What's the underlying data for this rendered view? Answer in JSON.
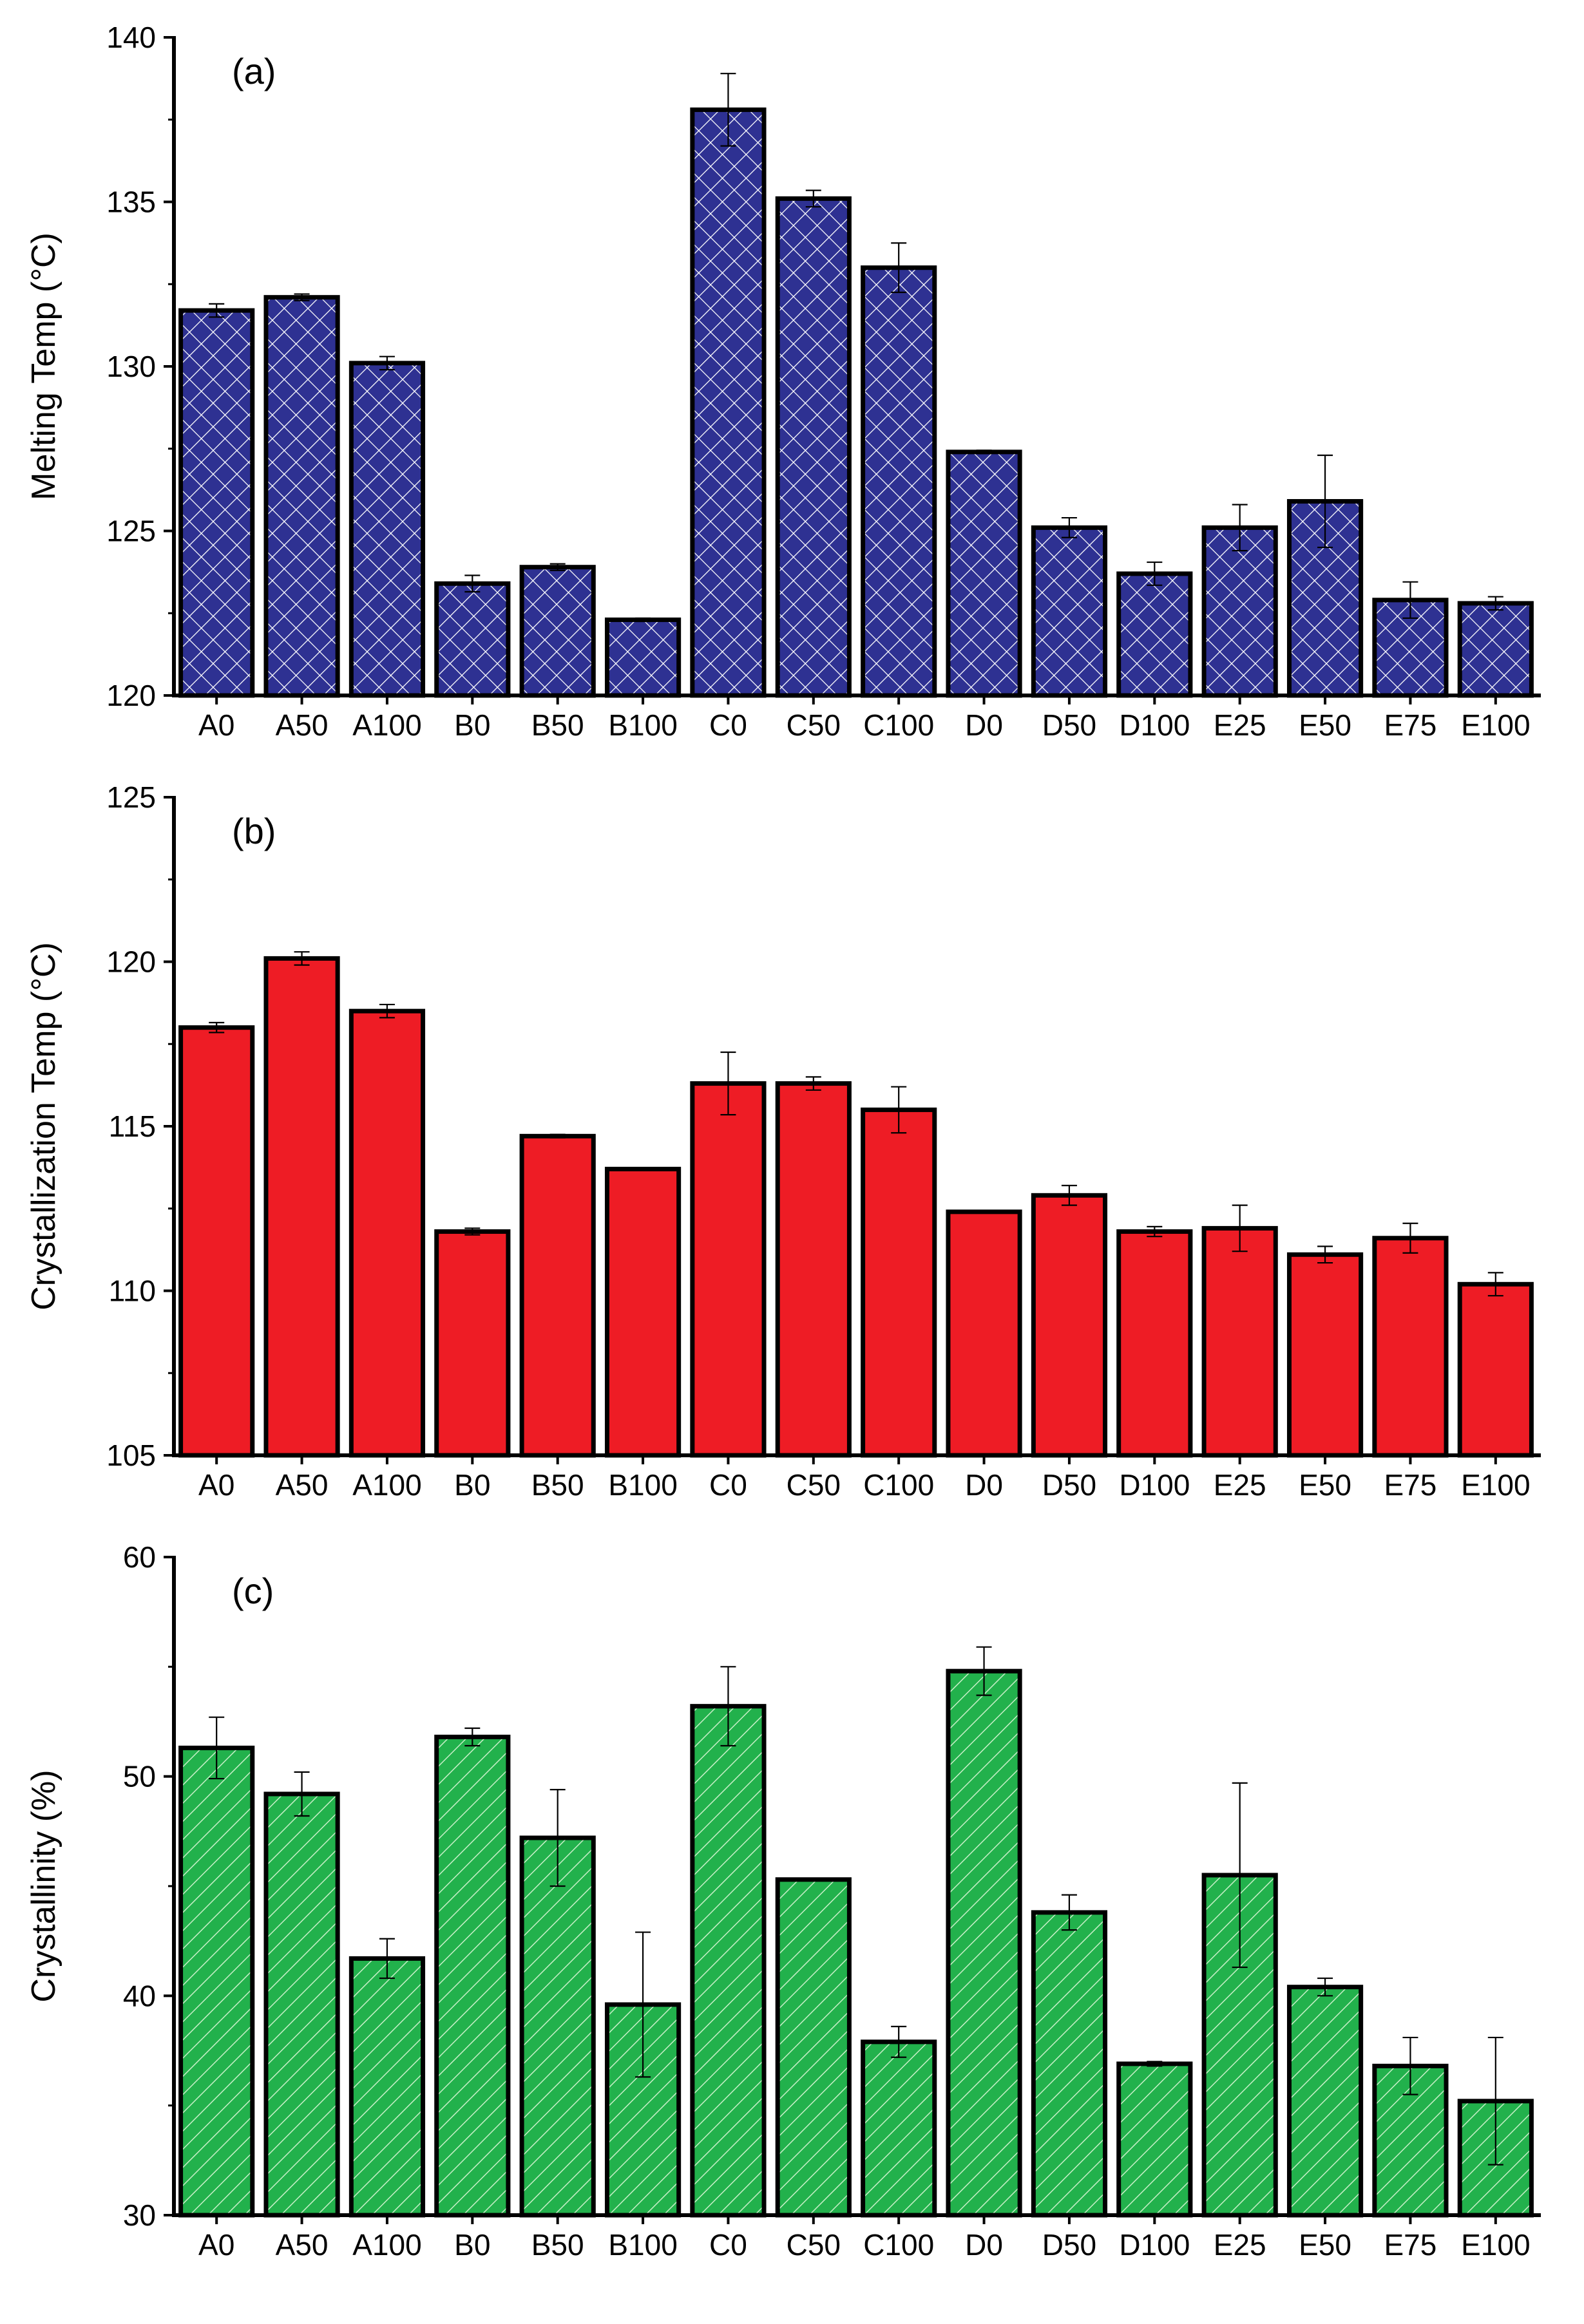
{
  "chart_data": [
    {
      "type": "bar",
      "title": "",
      "panel_label": "(a)",
      "xlabel": "",
      "ylabel": "Melting Temp (°C)",
      "ylim": [
        120,
        140
      ],
      "yticks": [
        120,
        125,
        130,
        135,
        140
      ],
      "categories": [
        "A0",
        "A50",
        "A100",
        "B0",
        "B50",
        "B100",
        "C0",
        "C50",
        "C100",
        "D0",
        "D50",
        "D100",
        "E25",
        "E50",
        "E75",
        "E100"
      ],
      "values": [
        131.7,
        132.1,
        130.1,
        123.4,
        123.9,
        122.3,
        137.8,
        135.1,
        133.0,
        127.4,
        125.1,
        123.7,
        125.1,
        125.9,
        122.9,
        122.8
      ],
      "errors": [
        0.2,
        0.1,
        0.2,
        0.25,
        0.1,
        0.05,
        1.1,
        0.25,
        0.75,
        0.05,
        0.3,
        0.35,
        0.7,
        1.4,
        0.55,
        0.2
      ],
      "fill_color": "#2e3192",
      "pattern": "crosshatch"
    },
    {
      "type": "bar",
      "title": "",
      "panel_label": "(b)",
      "xlabel": "",
      "ylabel": "Crystallization Temp (°C)",
      "ylim": [
        105,
        125
      ],
      "yticks": [
        105,
        110,
        115,
        120,
        125
      ],
      "categories": [
        "A0",
        "A50",
        "A100",
        "B0",
        "B50",
        "B100",
        "C0",
        "C50",
        "C100",
        "D0",
        "D50",
        "D100",
        "E25",
        "E50",
        "E75",
        "E100"
      ],
      "values": [
        118.0,
        120.1,
        118.5,
        111.8,
        114.7,
        113.7,
        116.3,
        116.3,
        115.5,
        112.4,
        112.9,
        111.8,
        111.9,
        111.1,
        111.6,
        110.2
      ],
      "errors": [
        0.15,
        0.2,
        0.2,
        0.1,
        0.05,
        0.0,
        0.95,
        0.2,
        0.7,
        0.0,
        0.3,
        0.15,
        0.7,
        0.25,
        0.45,
        0.35
      ],
      "fill_color": "#ee1c25",
      "pattern": "solid"
    },
    {
      "type": "bar",
      "title": "",
      "panel_label": "(c)",
      "xlabel": "",
      "ylabel": "Crystallinity (%)",
      "ylim": [
        30,
        60
      ],
      "yticks": [
        30,
        40,
        50,
        60
      ],
      "categories": [
        "A0",
        "A50",
        "A100",
        "B0",
        "B50",
        "B100",
        "C0",
        "C50",
        "C100",
        "D0",
        "D50",
        "D100",
        "E25",
        "E50",
        "E75",
        "E100"
      ],
      "values": [
        51.3,
        49.2,
        41.7,
        51.8,
        47.2,
        39.6,
        53.2,
        45.3,
        37.9,
        54.8,
        43.8,
        36.9,
        45.5,
        40.4,
        36.8,
        35.2
      ],
      "errors": [
        1.4,
        1.0,
        0.9,
        0.4,
        2.2,
        3.3,
        1.8,
        0.0,
        0.7,
        1.1,
        0.8,
        0.1,
        4.2,
        0.4,
        1.3,
        2.9
      ],
      "fill_color": "#22b14c",
      "pattern": "diagonal"
    }
  ]
}
